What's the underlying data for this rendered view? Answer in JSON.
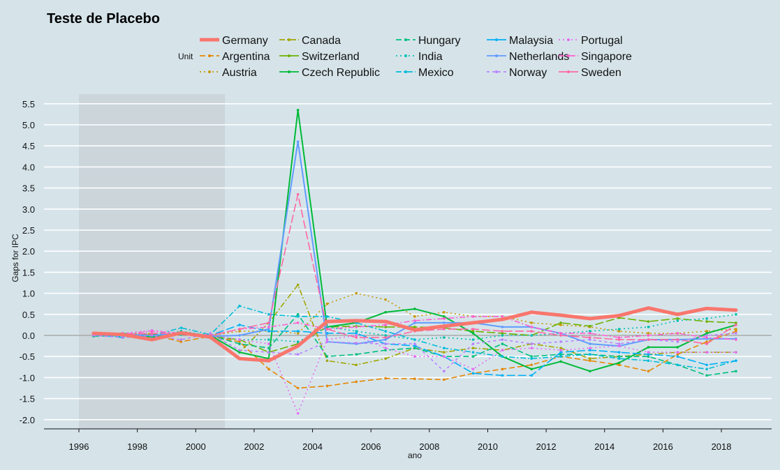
{
  "chart_data": {
    "type": "line",
    "title": "Teste de Placebo",
    "xlabel": "ano",
    "ylabel": "Gaps  for IPC",
    "legend_title": "Unit",
    "legend_placement": "top",
    "grid": true,
    "xlim": [
      1994.8,
      2019.8
    ],
    "ylim": [
      -2.2,
      5.72
    ],
    "x_ticks": [
      1996,
      1998,
      2000,
      2002,
      2004,
      2006,
      2008,
      2010,
      2012,
      2014,
      2016,
      2018
    ],
    "y_ticks": [
      -2.0,
      -1.5,
      -1.0,
      -0.5,
      0.0,
      0.5,
      1.0,
      1.5,
      2.0,
      2.5,
      3.0,
      3.5,
      4.0,
      4.5,
      5.0,
      5.5
    ],
    "y_tick_labels": [
      "-2.0",
      "-1.5",
      "-1.0",
      "-0.5",
      "0.0",
      "0.5",
      "1.0",
      "1.5",
      "2.0",
      "2.5",
      "3.0",
      "3.5",
      "4.0",
      "4.5",
      "5.0",
      "5.5"
    ],
    "shaded_period": [
      1996,
      2001
    ],
    "reference_line": 0,
    "x": [
      1996.5,
      1997.5,
      1998.5,
      1999.5,
      2000.5,
      2001.5,
      2002.5,
      2003.5,
      2004.5,
      2005.5,
      2006.5,
      2007.5,
      2008.5,
      2009.5,
      2010.5,
      2011.5,
      2012.5,
      2013.5,
      2014.5,
      2015.5,
      2016.5,
      2017.5,
      2018.5
    ],
    "series": [
      {
        "name": "Germany",
        "color": "#F8766D",
        "dash": "",
        "width": 5,
        "values": [
          0.05,
          0.02,
          -0.1,
          0.06,
          -0.04,
          -0.55,
          -0.6,
          -0.25,
          0.33,
          0.35,
          0.33,
          0.13,
          0.22,
          0.3,
          0.38,
          0.55,
          0.48,
          0.4,
          0.47,
          0.65,
          0.5,
          0.64,
          0.6
        ]
      },
      {
        "name": "Argentina",
        "color": "#E58700",
        "dash": "8 4",
        "width": 1.6,
        "values": [
          0.03,
          0.0,
          0.02,
          -0.15,
          -0.02,
          -0.15,
          -0.8,
          -1.25,
          -1.2,
          -1.1,
          -1.02,
          -1.03,
          -1.05,
          -0.9,
          -0.8,
          -0.7,
          -0.5,
          -0.6,
          -0.7,
          -0.85,
          -0.45,
          -0.15,
          0.1
        ]
      },
      {
        "name": "Austria",
        "color": "#C99800",
        "dash": "2 4",
        "width": 1.6,
        "values": [
          0.02,
          0.03,
          0.05,
          0.02,
          0.0,
          0.1,
          0.1,
          0.05,
          0.75,
          1.0,
          0.85,
          0.45,
          0.55,
          0.45,
          0.45,
          0.3,
          0.25,
          0.2,
          0.1,
          0.05,
          0.05,
          0.1,
          0.15
        ]
      },
      {
        "name": "Canada",
        "color": "#A3A500",
        "dash": "8 3 2 3",
        "width": 1.6,
        "values": [
          0.01,
          0.02,
          -0.02,
          0.05,
          0.0,
          -0.4,
          0.3,
          1.2,
          -0.6,
          -0.7,
          -0.55,
          -0.3,
          -0.4,
          -0.3,
          -0.35,
          -0.2,
          -0.3,
          -0.55,
          -0.5,
          -0.45,
          -0.4,
          -0.4,
          -0.4
        ]
      },
      {
        "name": "Switzerland",
        "color": "#6BB100",
        "dash": "12 4",
        "width": 1.6,
        "values": [
          0.0,
          0.04,
          0.02,
          0.03,
          -0.02,
          -0.1,
          -0.4,
          -0.2,
          0.2,
          0.22,
          0.2,
          0.2,
          0.18,
          0.1,
          0.05,
          0.0,
          0.3,
          0.22,
          0.42,
          0.33,
          0.4,
          0.33,
          0.3
        ]
      },
      {
        "name": "Czech Republic",
        "color": "#00BA38",
        "dash": "",
        "width": 2,
        "values": [
          0.0,
          0.05,
          -0.03,
          0.05,
          0.0,
          -0.4,
          -0.55,
          5.35,
          0.2,
          0.3,
          0.55,
          0.63,
          0.45,
          0.05,
          -0.5,
          -0.8,
          -0.62,
          -0.85,
          -0.65,
          -0.28,
          -0.28,
          0.05,
          0.25
        ]
      },
      {
        "name": "Hungary",
        "color": "#00BF7D",
        "dash": "8 4",
        "width": 1.6,
        "values": [
          -0.02,
          0.0,
          -0.05,
          0.02,
          0.0,
          -0.2,
          -0.3,
          0.5,
          -0.5,
          -0.45,
          -0.35,
          -0.3,
          -0.5,
          -0.5,
          -0.2,
          -0.5,
          -0.45,
          -0.45,
          -0.5,
          -0.5,
          -0.7,
          -0.95,
          -0.85
        ]
      },
      {
        "name": "India",
        "color": "#00C0AF",
        "dash": "2 4",
        "width": 1.6,
        "values": [
          0.0,
          -0.02,
          0.0,
          0.1,
          0.0,
          -0.1,
          -0.1,
          -0.15,
          0.2,
          0.1,
          0.0,
          -0.1,
          -0.05,
          -0.1,
          0.0,
          0.0,
          0.05,
          0.1,
          0.15,
          0.2,
          0.35,
          0.4,
          0.5
        ]
      },
      {
        "name": "Mexico",
        "color": "#00BCD8",
        "dash": "8 3 2 3",
        "width": 1.6,
        "values": [
          0.05,
          -0.05,
          0.0,
          0.18,
          0.02,
          0.7,
          0.5,
          0.45,
          0.45,
          0.3,
          0.1,
          -0.1,
          -0.3,
          -0.4,
          -0.5,
          -0.55,
          -0.5,
          -0.45,
          -0.55,
          -0.6,
          -0.7,
          -0.8,
          -0.6
        ]
      },
      {
        "name": "Malaysia",
        "color": "#00B0F6",
        "dash": "12 4",
        "width": 1.6,
        "values": [
          0.02,
          -0.05,
          0.0,
          0.05,
          0.0,
          0.25,
          0.1,
          0.1,
          0.05,
          0.05,
          -0.2,
          -0.25,
          -0.5,
          -0.9,
          -0.95,
          -0.95,
          -0.4,
          -0.35,
          -0.4,
          -0.45,
          -0.5,
          -0.7,
          -0.6
        ]
      },
      {
        "name": "Netherlands",
        "color": "#619CFF",
        "dash": "",
        "width": 2,
        "values": [
          0.0,
          0.02,
          0.0,
          0.04,
          -0.02,
          0.0,
          0.15,
          4.6,
          -0.15,
          -0.2,
          -0.1,
          0.3,
          0.3,
          0.3,
          0.2,
          0.2,
          0.05,
          -0.2,
          -0.25,
          -0.1,
          -0.1,
          -0.08,
          -0.08
        ]
      },
      {
        "name": "Norway",
        "color": "#B983FF",
        "dash": "4 4",
        "width": 1.6,
        "values": [
          0.0,
          -0.05,
          0.0,
          -0.1,
          0.05,
          -0.35,
          -0.4,
          -0.45,
          -0.15,
          -0.18,
          -0.2,
          -0.2,
          -0.85,
          -0.2,
          -0.1,
          -0.2,
          -0.15,
          -0.1,
          -0.2,
          -0.1,
          -0.15,
          0.0,
          0.05
        ]
      },
      {
        "name": "Portugal",
        "color": "#E76BF3",
        "dash": "2 4",
        "width": 1.6,
        "values": [
          0.03,
          0.05,
          0.12,
          0.05,
          0.0,
          -0.1,
          -0.2,
          -1.85,
          -0.1,
          0.0,
          -0.3,
          -0.5,
          -0.5,
          -0.8,
          -0.35,
          -0.3,
          -0.35,
          -0.3,
          -0.25,
          -0.4,
          -0.4,
          -0.4,
          -0.4
        ]
      },
      {
        "name": "Singapore",
        "color": "#FD61D1",
        "dash": "8 3 2 3",
        "width": 1.6,
        "values": [
          0.05,
          0.03,
          0.1,
          0.05,
          0.0,
          0.15,
          0.2,
          0.3,
          0.15,
          0.2,
          0.25,
          0.35,
          0.4,
          0.45,
          0.45,
          0.2,
          0.05,
          0.05,
          -0.05,
          0.0,
          0.05,
          -0.05,
          -0.1
        ]
      },
      {
        "name": "Sweden",
        "color": "#FF67A4",
        "dash": "12 4",
        "width": 1.6,
        "values": [
          0.04,
          0.02,
          0.05,
          0.04,
          0.0,
          0.15,
          0.3,
          3.35,
          0.15,
          -0.05,
          -0.05,
          0.1,
          0.15,
          0.15,
          0.1,
          0.1,
          0.0,
          -0.05,
          -0.1,
          -0.1,
          -0.1,
          -0.2,
          0.25
        ]
      }
    ]
  }
}
